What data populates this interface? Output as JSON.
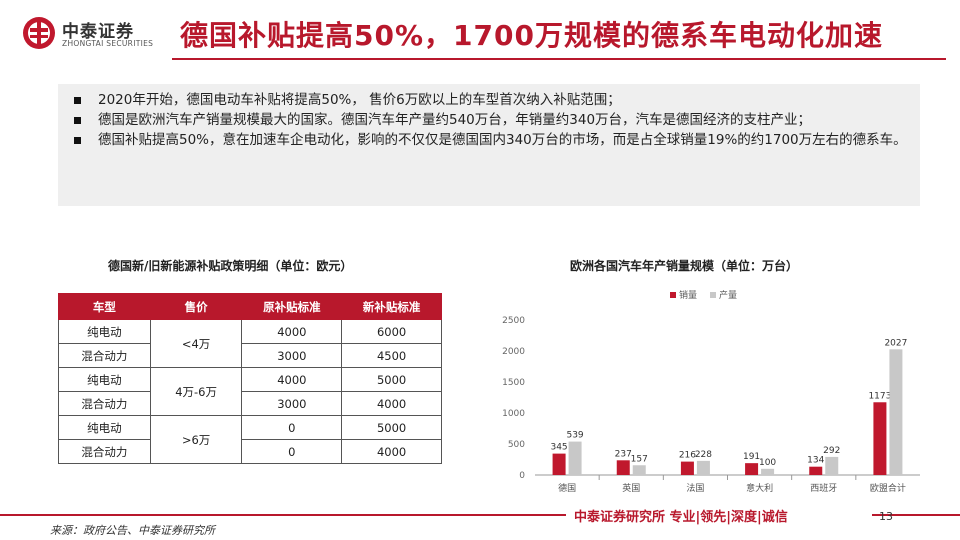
{
  "header": {
    "logo_cn": "中泰证券",
    "logo_en": "ZHONGTAI SECURITIES",
    "title": "德国补贴提高50%，1700万规模的德系车电动化加速"
  },
  "summary": {
    "bullets": [
      "2020年开始，德国电动车补贴将提高50%， 售价6万欧以上的车型首次纳入补贴范围；",
      "德国是欧洲汽车产销量规模最大的国家。德国汽车年产量约540万台，年销量约340万台，汽车是德国经济的支柱产业；",
      "德国补贴提高50%，意在加速车企电动化，影响的不仅仅是德国国内340万台的市场，而是占全球销量19%的约1700万左右的德系车。"
    ]
  },
  "table": {
    "title": "德国新/旧新能源补贴政策明细（单位：欧元）",
    "headers": [
      "车型",
      "售价",
      "原补贴标准",
      "新补贴标准"
    ],
    "rows": [
      {
        "type": "纯电动",
        "price": "<4万",
        "old": "4000",
        "new": "6000"
      },
      {
        "type": "混合动力",
        "price": "",
        "old": "3000",
        "new": "4500"
      },
      {
        "type": "纯电动",
        "price": "4万-6万",
        "old": "4000",
        "new": "5000"
      },
      {
        "type": "混合动力",
        "price": "",
        "old": "3000",
        "new": "4000"
      },
      {
        "type": "纯电动",
        "price": ">6万",
        "old": "0",
        "new": "5000"
      },
      {
        "type": "混合动力",
        "price": "",
        "old": "0",
        "new": "4000"
      }
    ]
  },
  "chart_data": {
    "type": "bar",
    "title": "欧洲各国汽车年产销量规模（单位：万台）",
    "categories": [
      "德国",
      "英国",
      "法国",
      "意大利",
      "西班牙",
      "欧盟合计"
    ],
    "series": [
      {
        "name": "销量",
        "values": [
          345,
          237,
          216,
          191,
          134,
          1173
        ],
        "color": "#c0182d"
      },
      {
        "name": "产量",
        "values": [
          539,
          157,
          228,
          100,
          292,
          2027
        ],
        "color": "#c8c8c8"
      }
    ],
    "ylim": [
      0,
      2500
    ],
    "yticks": [
      "0",
      "500",
      "1000",
      "1500",
      "2000",
      "2500"
    ],
    "legend_position": "top",
    "grid": false
  },
  "footer": {
    "slogan": "中泰证券研究所 专业|领先|深度|诚信",
    "page": "13",
    "source": "来源：政府公告、中泰证券研究所"
  }
}
